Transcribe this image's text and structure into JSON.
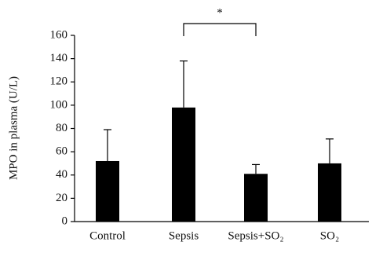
{
  "chart_data": {
    "type": "bar",
    "y_label": "MPO in plasma (U/L)",
    "categories": [
      "Control",
      "Sepsis",
      "Sepsis+SO₂",
      "SO₂"
    ],
    "values": [
      52,
      98,
      41,
      50
    ],
    "errors": [
      27,
      40,
      8,
      21
    ],
    "color": "#000000",
    "ylim": [
      0,
      160
    ],
    "yticks": [
      0,
      20,
      40,
      60,
      80,
      100,
      120,
      140,
      160
    ],
    "annotation": "*"
  }
}
